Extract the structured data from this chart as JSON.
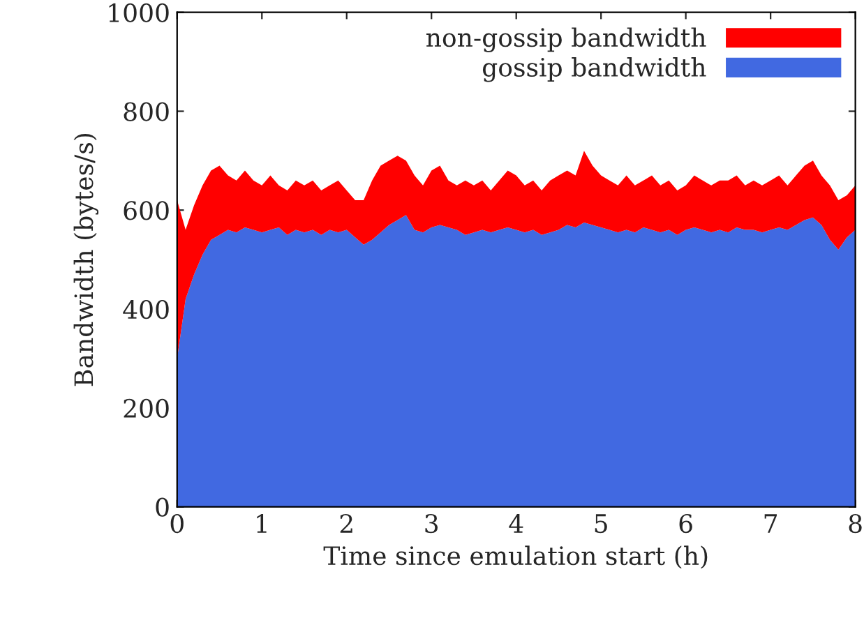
{
  "chart_data": {
    "type": "area",
    "stacked": true,
    "xlabel": "Time since emulation start (h)",
    "ylabel": "Bandwidth (bytes/s)",
    "x": [
      0,
      0.1,
      0.2,
      0.3,
      0.4,
      0.5,
      0.6,
      0.7,
      0.8,
      0.9,
      1.0,
      1.1,
      1.2,
      1.3,
      1.4,
      1.5,
      1.6,
      1.7,
      1.8,
      1.9,
      2.0,
      2.1,
      2.2,
      2.3,
      2.4,
      2.5,
      2.6,
      2.7,
      2.8,
      2.9,
      3.0,
      3.1,
      3.2,
      3.3,
      3.4,
      3.5,
      3.6,
      3.7,
      3.8,
      3.9,
      4.0,
      4.1,
      4.2,
      4.3,
      4.4,
      4.5,
      4.6,
      4.7,
      4.8,
      4.9,
      5.0,
      5.1,
      5.2,
      5.3,
      5.4,
      5.5,
      5.6,
      5.7,
      5.8,
      5.9,
      6.0,
      6.1,
      6.2,
      6.3,
      6.4,
      6.5,
      6.6,
      6.7,
      6.8,
      6.9,
      7.0,
      7.1,
      7.2,
      7.3,
      7.4,
      7.5,
      7.6,
      7.7,
      7.8,
      7.9,
      8.0
    ],
    "series": [
      {
        "name": "gossip bandwidth",
        "color": "#4169e1",
        "values": [
          300,
          420,
          470,
          510,
          540,
          550,
          560,
          555,
          565,
          560,
          555,
          560,
          565,
          550,
          560,
          555,
          560,
          550,
          560,
          555,
          560,
          545,
          530,
          540,
          555,
          570,
          580,
          590,
          560,
          555,
          565,
          570,
          565,
          560,
          550,
          555,
          560,
          555,
          560,
          565,
          560,
          555,
          560,
          550,
          555,
          560,
          570,
          565,
          575,
          570,
          565,
          560,
          555,
          560,
          555,
          565,
          560,
          555,
          560,
          550,
          560,
          565,
          560,
          555,
          560,
          555,
          565,
          560,
          560,
          555,
          560,
          565,
          560,
          570,
          580,
          585,
          570,
          540,
          520,
          545,
          560
        ]
      },
      {
        "name": "non-gossip bandwidth",
        "color": "#ff0000",
        "values": [
          320,
          140,
          140,
          140,
          140,
          140,
          110,
          105,
          115,
          100,
          95,
          110,
          85,
          90,
          100,
          95,
          100,
          90,
          90,
          105,
          80,
          75,
          90,
          120,
          135,
          130,
          130,
          110,
          110,
          95,
          115,
          120,
          95,
          90,
          110,
          95,
          100,
          85,
          100,
          115,
          110,
          95,
          100,
          90,
          105,
          110,
          110,
          105,
          145,
          120,
          105,
          100,
          95,
          110,
          95,
          95,
          110,
          95,
          100,
          90,
          90,
          105,
          100,
          95,
          100,
          105,
          105,
          90,
          100,
          95,
          100,
          105,
          90,
          100,
          110,
          115,
          100,
          110,
          100,
          85,
          90
        ]
      }
    ],
    "xlim": [
      0,
      8
    ],
    "ylim": [
      0,
      1000
    ],
    "xticks": [
      0,
      1,
      2,
      3,
      4,
      5,
      6,
      7,
      8
    ],
    "yticks": [
      0,
      200,
      400,
      600,
      800,
      1000
    ],
    "legend": "top right"
  }
}
